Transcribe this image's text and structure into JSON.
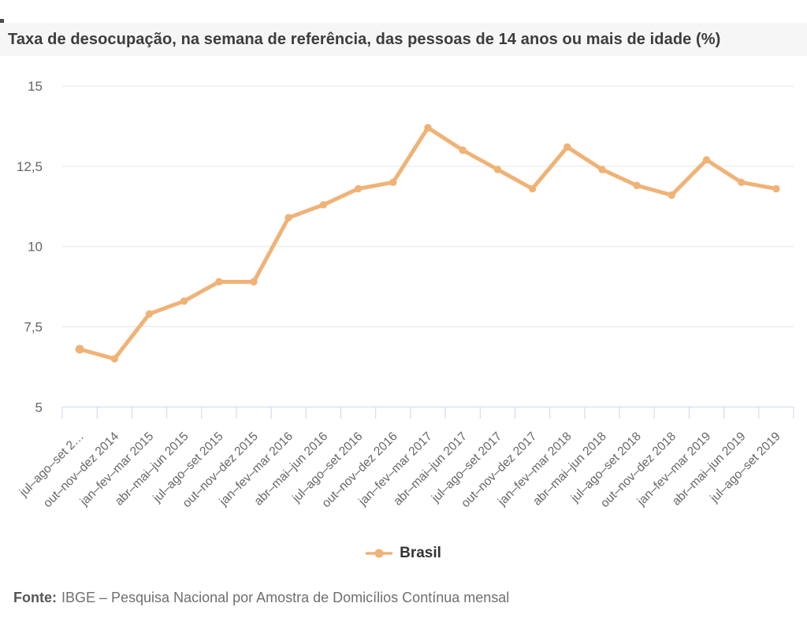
{
  "title": {
    "text": "Taxa de desocupação, na semana de referência, das pessoas de 14 anos ou mais de idade (%)"
  },
  "legend": {
    "items": [
      {
        "label": "Brasil",
        "color": "#f0b276"
      }
    ]
  },
  "footer": {
    "label": "Fonte:",
    "text": "IBGE – Pesquisa Nacional por Amostra de Domicílios Contínua mensal"
  },
  "chart_data": {
    "type": "line",
    "title": "Taxa de desocupação, na semana de referência, das pessoas de 14 anos ou mais de idade (%)",
    "categories": [
      "jul–ago–set 2…",
      "out–nov–dez 2014",
      "jan–fev–mar 2015",
      "abr–mai–jun 2015",
      "jul–ago–set 2015",
      "out–nov–dez 2015",
      "jan–fev–mar 2016",
      "abr–mai–jun 2016",
      "jul–ago–set 2016",
      "out–nov–dez 2016",
      "jan–fev–mar 2017",
      "abr–mai–jun 2017",
      "jul–ago–set 2017",
      "out–nov–dez 2017",
      "jan–fev–mar 2018",
      "abr–mai–jun 2018",
      "jul–ago–set 2018",
      "out–nov–dez 2018",
      "jan–fev–mar 2019",
      "abr–mai–jun 2019",
      "jul–ago–set 2019"
    ],
    "series": [
      {
        "name": "Brasil",
        "color": "#f0b276",
        "values": [
          6.8,
          6.5,
          7.9,
          8.3,
          8.9,
          8.9,
          10.9,
          11.3,
          11.8,
          12.0,
          13.7,
          13.0,
          12.4,
          11.8,
          13.1,
          12.4,
          11.9,
          11.6,
          12.7,
          12.0,
          11.8
        ]
      }
    ],
    "ylim": [
      5,
      15
    ],
    "yticks": [
      {
        "value": 15,
        "label": "15"
      },
      {
        "value": 12.5,
        "label": "12,5"
      },
      {
        "value": 10,
        "label": "10"
      },
      {
        "value": 7.5,
        "label": "7,5"
      },
      {
        "value": 5,
        "label": "5"
      }
    ],
    "grid": true,
    "legend_position": "bottom",
    "colors": {
      "grid": "#e6e6e6",
      "axis": "#ccd6eb",
      "tick_label": "#666666"
    }
  }
}
